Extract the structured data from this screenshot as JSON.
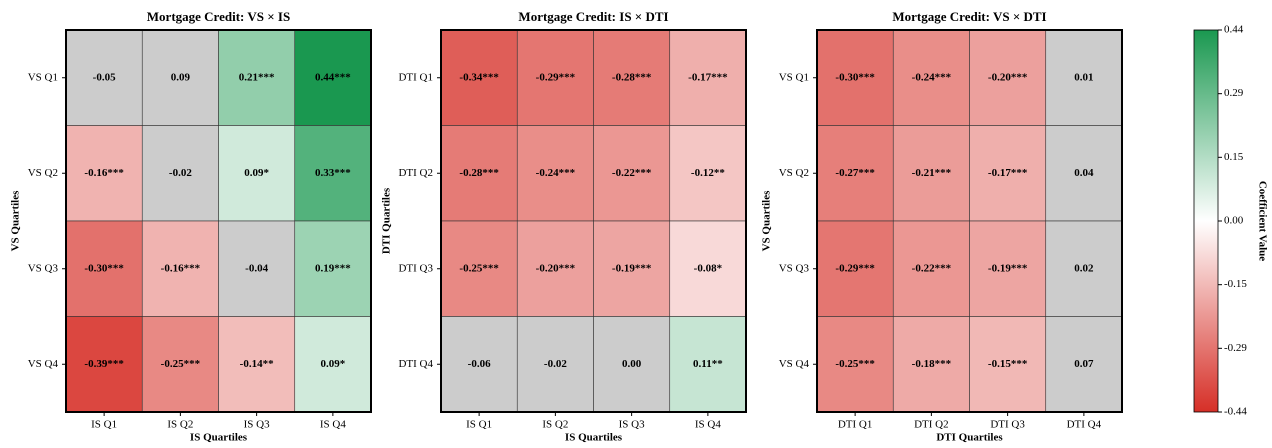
{
  "chart_data": [
    {
      "type": "heatmap",
      "title": "Mortgage Credit: VS × IS",
      "xlabel": "IS Quartiles",
      "ylabel": "VS Quartiles",
      "x_categories": [
        "IS Q1",
        "IS Q2",
        "IS Q3",
        "IS Q4"
      ],
      "y_categories": [
        "VS Q1",
        "VS Q2",
        "VS Q3",
        "VS Q4"
      ],
      "values": [
        [
          -0.05,
          0.09,
          0.21,
          0.44
        ],
        [
          -0.16,
          -0.02,
          0.09,
          0.33
        ],
        [
          -0.3,
          -0.16,
          -0.04,
          0.19
        ],
        [
          -0.39,
          -0.25,
          -0.14,
          0.09
        ]
      ],
      "value_labels": [
        [
          "-0.05",
          "0.09",
          "0.21***",
          "0.44***"
        ],
        [
          "-0.16***",
          "-0.02",
          "0.09*",
          "0.33***"
        ],
        [
          "-0.30***",
          "-0.16***",
          "-0.04",
          "0.19***"
        ],
        [
          "-0.39***",
          "-0.25***",
          "-0.14**",
          "0.09*"
        ]
      ]
    },
    {
      "type": "heatmap",
      "title": "Mortgage Credit: IS × DTI",
      "xlabel": "IS Quartiles",
      "ylabel": "DTI Quartiles",
      "x_categories": [
        "IS Q1",
        "IS Q2",
        "IS Q3",
        "IS Q4"
      ],
      "y_categories": [
        "DTI Q1",
        "DTI Q2",
        "DTI Q3",
        "DTI Q4"
      ],
      "values": [
        [
          -0.34,
          -0.29,
          -0.28,
          -0.17
        ],
        [
          -0.28,
          -0.24,
          -0.22,
          -0.12
        ],
        [
          -0.25,
          -0.2,
          -0.19,
          -0.08
        ],
        [
          -0.06,
          -0.02,
          0.0,
          0.11
        ]
      ],
      "value_labels": [
        [
          "-0.34***",
          "-0.29***",
          "-0.28***",
          "-0.17***"
        ],
        [
          "-0.28***",
          "-0.24***",
          "-0.22***",
          "-0.12**"
        ],
        [
          "-0.25***",
          "-0.20***",
          "-0.19***",
          "-0.08*"
        ],
        [
          "-0.06",
          "-0.02",
          "0.00",
          "0.11**"
        ]
      ]
    },
    {
      "type": "heatmap",
      "title": "Mortgage Credit: VS × DTI",
      "xlabel": "DTI Quartiles",
      "ylabel": "VS Quartiles",
      "x_categories": [
        "DTI Q1",
        "DTI Q2",
        "DTI Q3",
        "DTI Q4"
      ],
      "y_categories": [
        "VS Q1",
        "VS Q2",
        "VS Q3",
        "VS Q4"
      ],
      "values": [
        [
          -0.3,
          -0.24,
          -0.2,
          0.01
        ],
        [
          -0.27,
          -0.21,
          -0.17,
          0.04
        ],
        [
          -0.29,
          -0.22,
          -0.19,
          0.02
        ],
        [
          -0.25,
          -0.18,
          -0.15,
          0.07
        ]
      ],
      "value_labels": [
        [
          "-0.30***",
          "-0.24***",
          "-0.20***",
          "0.01"
        ],
        [
          "-0.27***",
          "-0.21***",
          "-0.17***",
          "0.04"
        ],
        [
          "-0.29***",
          "-0.22***",
          "-0.19***",
          "0.02"
        ],
        [
          "-0.25***",
          "-0.18***",
          "-0.15***",
          "0.07"
        ]
      ]
    },
    {
      "type": "colorbar",
      "label": "Coefficient Value",
      "lim": [
        -0.44,
        0.44
      ],
      "colors": [
        "#d62f27",
        "#ffffff",
        "#1a9850"
      ],
      "nonsignificant_color": "#cccccc",
      "ticks": [
        {
          "value": 0.44,
          "label": "0.44"
        },
        {
          "value": 0.2933,
          "label": "0.29"
        },
        {
          "value": 0.1467,
          "label": "0.15"
        },
        {
          "value": 0,
          "label": "0.00"
        },
        {
          "value": -0.1467,
          "label": "-0.15"
        },
        {
          "value": -0.2933,
          "label": "-0.29"
        },
        {
          "value": -0.44,
          "label": "-0.44"
        }
      ]
    }
  ]
}
